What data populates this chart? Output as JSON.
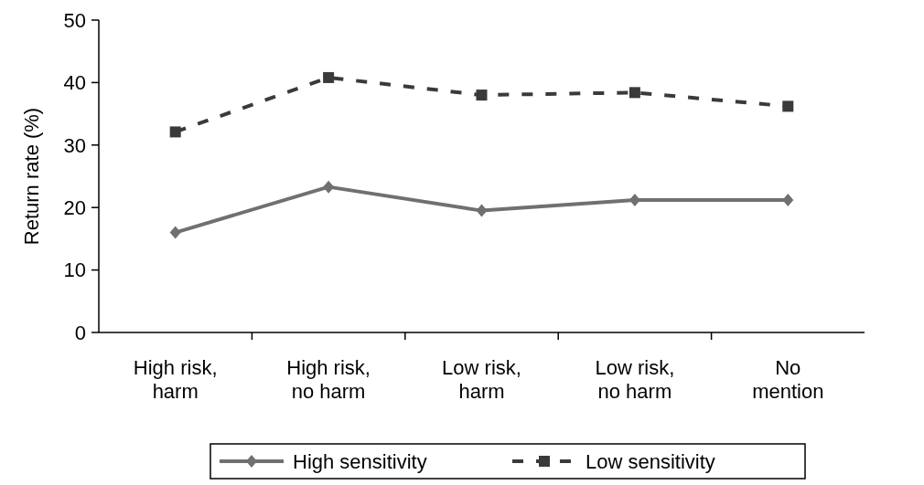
{
  "chart_data": {
    "type": "line",
    "ylabel": "Return rate (%)",
    "categories": [
      "High risk, harm",
      "High risk, no harm",
      "Low risk, harm",
      "Low risk, no harm",
      "No mention"
    ],
    "series": [
      {
        "name": "High sensitivity",
        "color": "#707070",
        "values": [
          16,
          23.3,
          19.5,
          21.2,
          21.2
        ],
        "marker": "diamond",
        "line_style": "solid"
      },
      {
        "name": "Low sensitivity",
        "color": "#3a3a3a",
        "values": [
          32.1,
          40.8,
          38,
          38.4,
          36.2
        ],
        "marker": "square",
        "line_style": "dashed"
      }
    ],
    "ylim": [
      0,
      50
    ],
    "yticks": [
      0,
      10,
      20,
      30,
      40,
      50
    ],
    "grid": false,
    "legend": "bottom"
  }
}
